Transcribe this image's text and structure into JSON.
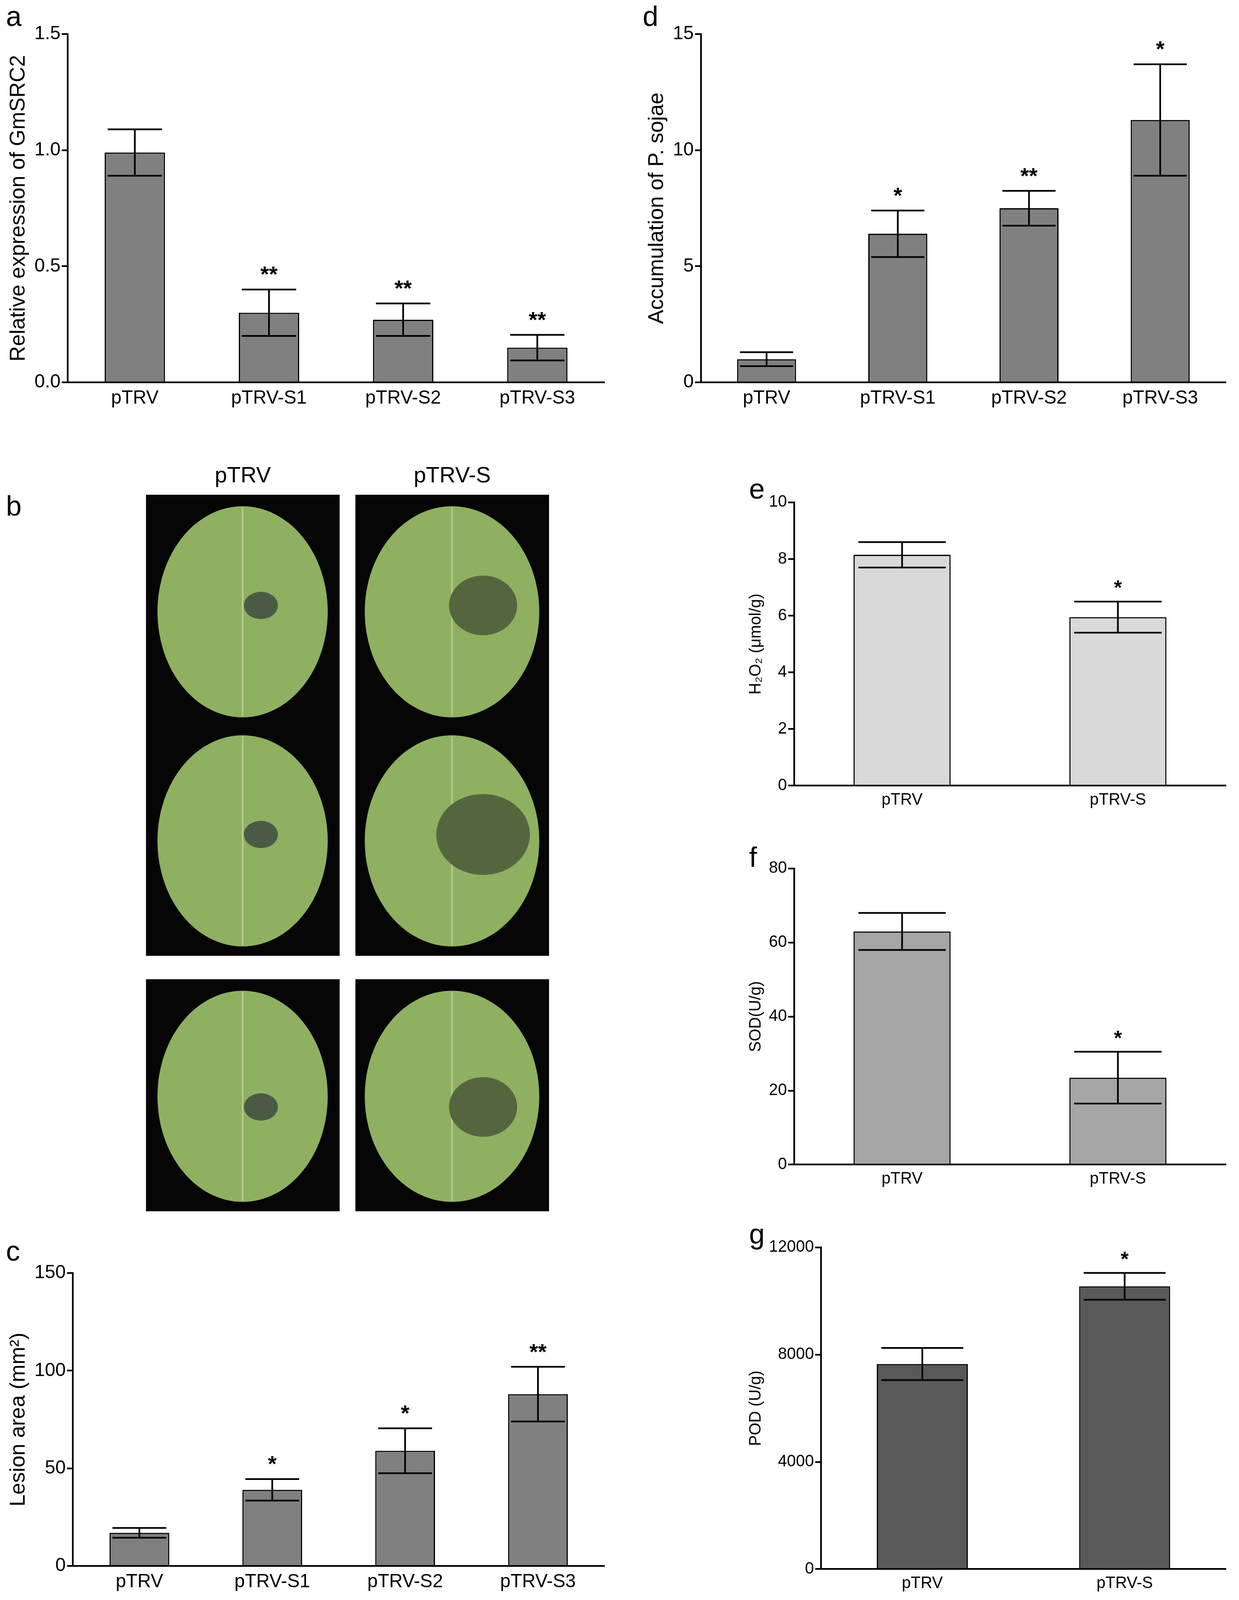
{
  "chart_data": [
    {
      "panel_label": "a",
      "type": "bar",
      "y_label": "Relative expression of GmSRC2",
      "categories": [
        "pTRV",
        "pTRV-S1",
        "pTRV-S2",
        "pTRV-S3"
      ],
      "values": [
        0.99,
        0.3,
        0.27,
        0.15
      ],
      "errors": [
        0.1,
        0.1,
        0.07,
        0.055
      ],
      "annotations": [
        null,
        "**",
        "**",
        "**"
      ],
      "color": "#808080",
      "ylim": [
        0,
        1.5
      ],
      "yticks": [
        {
          "value": 0,
          "label": "0.0"
        },
        0.5,
        {
          "value": 1,
          "label": "1.0"
        },
        1.5
      ],
      "grid": false
    },
    {
      "panel_label": "d",
      "type": "bar",
      "y_label": "Accumulation of P. sojae",
      "categories": [
        "pTRV",
        "pTRV-S1",
        "pTRV-S2",
        "pTRV-S3"
      ],
      "values": [
        1.0,
        6.4,
        7.5,
        11.3
      ],
      "errors": [
        0.3,
        1.0,
        0.75,
        2.4
      ],
      "annotations": [
        null,
        "*",
        "**",
        "*"
      ],
      "color": "#808080",
      "ylim": [
        0,
        15
      ],
      "yticks": [
        0,
        5,
        10,
        15
      ],
      "grid": false
    },
    {
      "panel_label": "c",
      "type": "bar",
      "y_label": "Lesion area (mm²)",
      "categories": [
        "pTRV",
        "pTRV-S1",
        "pTRV-S2",
        "pTRV-S3"
      ],
      "values": [
        17,
        39,
        59,
        88
      ],
      "errors": [
        2.5,
        5.5,
        11.5,
        14
      ],
      "annotations": [
        null,
        "*",
        "*",
        "**"
      ],
      "color": "#808080",
      "ylim": [
        0,
        150
      ],
      "yticks": [
        0,
        50,
        100,
        150
      ],
      "grid": false
    },
    {
      "panel_label": "e",
      "type": "bar",
      "y_label": "H₂O₂ (μmol/g)",
      "categories": [
        "pTRV",
        "pTRV-S"
      ],
      "values": [
        8.15,
        5.95
      ],
      "errors": [
        0.45,
        0.55
      ],
      "annotations": [
        null,
        "*"
      ],
      "color": "#d9d9d9",
      "ylim": [
        0,
        10
      ],
      "yticks": [
        0,
        2,
        4,
        6,
        8,
        10
      ],
      "grid": false
    },
    {
      "panel_label": "f",
      "type": "bar",
      "y_label": "SOD(U/g)",
      "categories": [
        "pTRV",
        "pTRV-S"
      ],
      "values": [
        63,
        23.5
      ],
      "errors": [
        5,
        7
      ],
      "annotations": [
        null,
        "*"
      ],
      "color": "#a6a6a6",
      "ylim": [
        0,
        80
      ],
      "yticks": [
        0,
        20,
        40,
        60,
        80
      ],
      "grid": false
    },
    {
      "panel_label": "g",
      "type": "bar",
      "y_label": "POD (U/g)",
      "categories": [
        "pTRV",
        "pTRV-S"
      ],
      "values": [
        7650,
        10550
      ],
      "errors": [
        600,
        500
      ],
      "annotations": [
        null,
        "*"
      ],
      "color": "#595959",
      "ylim": [
        0,
        12000
      ],
      "yticks": [
        0,
        4000,
        8000,
        12000
      ],
      "grid": false
    }
  ],
  "photo_panel": {
    "panel_label": "b",
    "columns": [
      "pTRV",
      "pTRV-S"
    ]
  }
}
